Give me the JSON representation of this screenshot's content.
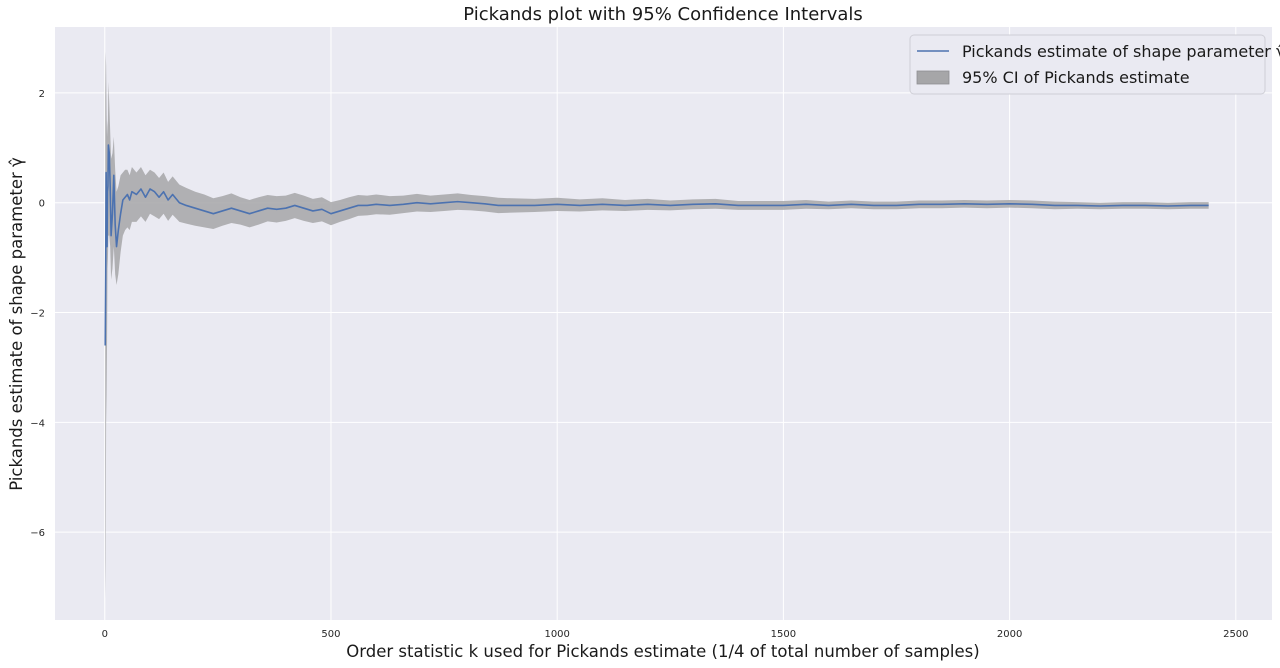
{
  "chart_data": {
    "type": "line",
    "title": "Pickands plot with 95% Confidence Intervals",
    "xlabel": "Order statistic k used for Pickands estimate (1/4 of total number of samples)",
    "ylabel": "Pickands estimate of shape parameter γ̂",
    "xlim": [
      -110,
      2580
    ],
    "ylim": [
      -7.6,
      3.2
    ],
    "xticks": [
      0,
      500,
      1000,
      1500,
      2000,
      2500
    ],
    "yticks": [
      -6,
      -4,
      -2,
      0,
      2
    ],
    "grid": true,
    "legend_position": "top-right",
    "series": [
      {
        "name": "Pickands estimate of shape parameter γ̂",
        "kind": "line",
        "color": "#4c72b0",
        "x": [
          1,
          2,
          3,
          4,
          5,
          6,
          7,
          8,
          10,
          12,
          14,
          17,
          20,
          23,
          26,
          30,
          35,
          40,
          45,
          50,
          55,
          60,
          70,
          80,
          90,
          100,
          110,
          120,
          130,
          140,
          150,
          165,
          180,
          200,
          220,
          240,
          260,
          280,
          300,
          320,
          340,
          360,
          380,
          400,
          420,
          440,
          460,
          480,
          500,
          520,
          540,
          560,
          580,
          600,
          630,
          660,
          690,
          720,
          750,
          780,
          810,
          840,
          870,
          900,
          950,
          1000,
          1050,
          1100,
          1150,
          1200,
          1250,
          1300,
          1350,
          1400,
          1450,
          1500,
          1550,
          1600,
          1650,
          1700,
          1750,
          1800,
          1850,
          1900,
          1950,
          2000,
          2050,
          2100,
          2150,
          2200,
          2250,
          2300,
          2350,
          2400,
          2440
        ],
        "y": [
          -2.6,
          -1.3,
          0.55,
          -0.5,
          -0.8,
          0.2,
          0.3,
          1.05,
          0.9,
          0.3,
          -0.6,
          -0.2,
          0.5,
          -0.4,
          -0.8,
          -0.5,
          -0.2,
          0.05,
          0.1,
          0.15,
          0.05,
          0.2,
          0.15,
          0.25,
          0.1,
          0.25,
          0.2,
          0.1,
          0.2,
          0.05,
          0.15,
          0.0,
          -0.05,
          -0.1,
          -0.15,
          -0.2,
          -0.15,
          -0.1,
          -0.15,
          -0.2,
          -0.15,
          -0.1,
          -0.12,
          -0.1,
          -0.05,
          -0.1,
          -0.15,
          -0.12,
          -0.2,
          -0.15,
          -0.1,
          -0.05,
          -0.05,
          -0.03,
          -0.05,
          -0.03,
          0.0,
          -0.02,
          0.0,
          0.02,
          0.0,
          -0.02,
          -0.05,
          -0.05,
          -0.05,
          -0.03,
          -0.05,
          -0.03,
          -0.05,
          -0.03,
          -0.05,
          -0.03,
          -0.02,
          -0.05,
          -0.05,
          -0.05,
          -0.03,
          -0.05,
          -0.03,
          -0.05,
          -0.05,
          -0.03,
          -0.03,
          -0.02,
          -0.03,
          -0.02,
          -0.03,
          -0.05,
          -0.05,
          -0.06,
          -0.05,
          -0.05,
          -0.06,
          -0.05,
          -0.05
        ]
      },
      {
        "name": "95% CI of Pickands estimate",
        "kind": "band",
        "color": "#a6a6a8",
        "x": [
          1,
          2,
          3,
          4,
          5,
          6,
          7,
          8,
          10,
          12,
          14,
          17,
          20,
          23,
          26,
          30,
          35,
          40,
          45,
          50,
          55,
          60,
          70,
          80,
          90,
          100,
          110,
          120,
          130,
          140,
          150,
          165,
          180,
          200,
          220,
          240,
          260,
          280,
          300,
          320,
          340,
          360,
          380,
          400,
          420,
          440,
          460,
          480,
          500,
          520,
          540,
          560,
          580,
          600,
          630,
          660,
          690,
          720,
          750,
          780,
          810,
          840,
          870,
          900,
          950,
          1000,
          1050,
          1100,
          1150,
          1200,
          1250,
          1300,
          1350,
          1400,
          1450,
          1500,
          1550,
          1600,
          1650,
          1700,
          1750,
          1800,
          1850,
          1900,
          1950,
          2000,
          2050,
          2100,
          2150,
          2200,
          2250,
          2300,
          2350,
          2400,
          2440
        ],
        "lower": [
          -7.2,
          -6.5,
          -4.0,
          -3.5,
          -2.6,
          -1.2,
          -1.0,
          -0.6,
          -0.6,
          -0.8,
          -1.4,
          -1.2,
          -0.8,
          -1.3,
          -1.5,
          -1.3,
          -0.9,
          -0.6,
          -0.5,
          -0.45,
          -0.5,
          -0.35,
          -0.35,
          -0.25,
          -0.35,
          -0.2,
          -0.25,
          -0.3,
          -0.2,
          -0.33,
          -0.22,
          -0.35,
          -0.38,
          -0.42,
          -0.45,
          -0.48,
          -0.42,
          -0.37,
          -0.4,
          -0.45,
          -0.4,
          -0.34,
          -0.36,
          -0.33,
          -0.28,
          -0.33,
          -0.37,
          -0.34,
          -0.41,
          -0.35,
          -0.3,
          -0.24,
          -0.23,
          -0.21,
          -0.22,
          -0.19,
          -0.16,
          -0.17,
          -0.15,
          -0.13,
          -0.14,
          -0.16,
          -0.19,
          -0.18,
          -0.17,
          -0.15,
          -0.16,
          -0.14,
          -0.15,
          -0.13,
          -0.14,
          -0.12,
          -0.11,
          -0.13,
          -0.13,
          -0.13,
          -0.11,
          -0.12,
          -0.1,
          -0.12,
          -0.12,
          -0.1,
          -0.1,
          -0.09,
          -0.1,
          -0.09,
          -0.1,
          -0.12,
          -0.11,
          -0.12,
          -0.11,
          -0.11,
          -0.12,
          -0.11,
          -0.11
        ],
        "upper": [
          1.9,
          2.75,
          2.5,
          1.6,
          1.2,
          1.4,
          1.5,
          2.2,
          1.8,
          1.3,
          0.8,
          0.9,
          1.2,
          0.6,
          0.2,
          0.3,
          0.5,
          0.55,
          0.6,
          0.6,
          0.5,
          0.65,
          0.55,
          0.65,
          0.5,
          0.6,
          0.55,
          0.45,
          0.55,
          0.38,
          0.48,
          0.33,
          0.27,
          0.2,
          0.15,
          0.08,
          0.12,
          0.17,
          0.1,
          0.05,
          0.1,
          0.14,
          0.12,
          0.13,
          0.18,
          0.13,
          0.07,
          0.1,
          0.01,
          0.05,
          0.1,
          0.14,
          0.13,
          0.15,
          0.12,
          0.13,
          0.16,
          0.13,
          0.15,
          0.17,
          0.14,
          0.12,
          0.09,
          0.08,
          0.07,
          0.09,
          0.06,
          0.08,
          0.05,
          0.07,
          0.04,
          0.06,
          0.07,
          0.03,
          0.03,
          0.03,
          0.05,
          0.02,
          0.04,
          0.02,
          0.02,
          0.04,
          0.04,
          0.05,
          0.04,
          0.05,
          0.04,
          0.02,
          0.01,
          0.0,
          0.01,
          0.01,
          0.0,
          0.01,
          0.01
        ]
      }
    ]
  },
  "colors": {
    "plot_background": "#eaeaf2",
    "grid": "#ffffff",
    "line": "#4c72b0",
    "band": "#a6a6a8"
  }
}
